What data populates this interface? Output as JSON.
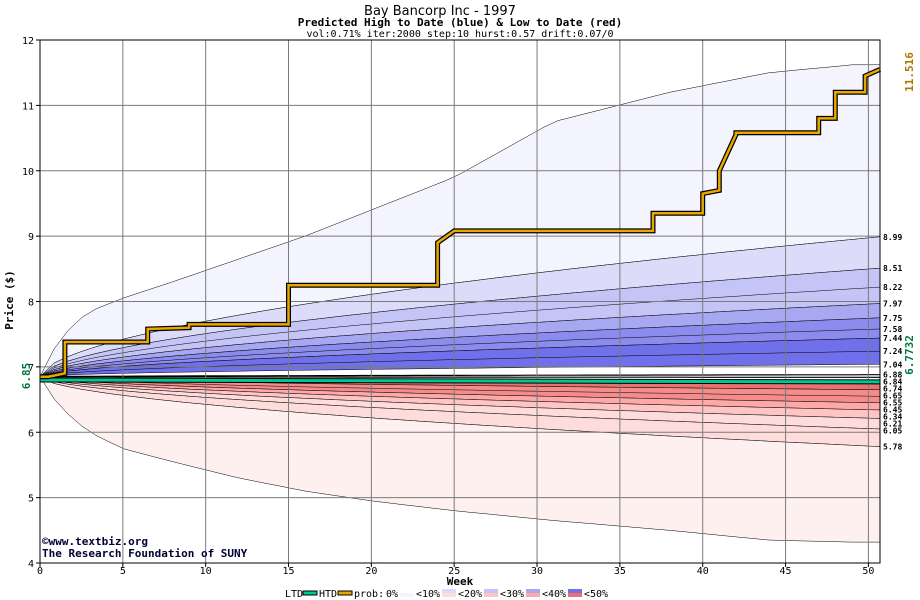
{
  "header": {
    "title": "Bay Bancorp Inc - 1997",
    "subtitle": "Predicted High to Date (blue) &  Low to Date (red)",
    "params": "vol:0.71% iter:2000 step:10 hurst:0.57 drift:0.07/0"
  },
  "credits": {
    "site": "www.textbiz.org",
    "org": "The Research Foundation of SUNY",
    "symbol": "©"
  },
  "legend": {
    "ltd": "LTD",
    "htd": "HTD",
    "prob": "prob:",
    "buckets": [
      "0%",
      "<10%",
      "<20%",
      "<30%",
      "<40%",
      "<50%"
    ]
  },
  "colors": {
    "ltd": "#00c890",
    "htd": "#e8a800",
    "blue_bands": [
      "#f4f4ff",
      "#dcdcfa",
      "#c4c4f6",
      "#a8a8f2",
      "#8c8cee",
      "#7070ea"
    ],
    "red_bands": [
      "#fff0f0",
      "#ffdcdc",
      "#ffc4c4",
      "#ffa8a8",
      "#f48c8c",
      "#ec7070"
    ],
    "start_label": "#007a40",
    "end_high_label": "#b07800",
    "end_low_label": "#007a40"
  },
  "chart_data": {
    "type": "area",
    "xlabel": "Week",
    "ylabel": "Price ($)",
    "xlim": [
      0,
      50.7
    ],
    "ylim": [
      4,
      12
    ],
    "xticks": [
      0,
      5,
      10,
      15,
      20,
      25,
      30,
      35,
      40,
      45,
      50
    ],
    "yticks": [
      4,
      5,
      6,
      7,
      8,
      9,
      10,
      11,
      12
    ],
    "grid": true,
    "start_value": "6.85",
    "end_high_value": "11.516",
    "end_low_value": "6.7732",
    "right_labels": [
      "8.99",
      "8.51",
      "8.22",
      "7.97",
      "7.75",
      "7.58",
      "7.44",
      "7.24",
      "7.04",
      "6.88",
      "6.84",
      "6.74",
      "6.65",
      "6.55",
      "6.45",
      "6.34",
      "6.21",
      "6.05",
      "5.78"
    ],
    "envelope": {
      "x": [
        0,
        1,
        2,
        3,
        5,
        8,
        12,
        16,
        20,
        25,
        31,
        38,
        44,
        49,
        50.7
      ],
      "upper": [
        6.85,
        7.35,
        7.65,
        7.85,
        8.05,
        8.3,
        8.65,
        9.0,
        9.4,
        9.9,
        10.75,
        11.2,
        11.5,
        11.62,
        11.62
      ],
      "lower": [
        6.85,
        6.45,
        6.2,
        6.0,
        5.75,
        5.55,
        5.3,
        5.1,
        4.95,
        4.8,
        4.65,
        4.5,
        4.35,
        4.32,
        4.32
      ]
    },
    "htd_series": {
      "x": [
        0,
        0.5,
        1.5,
        1.5,
        6.5,
        6.5,
        9,
        9,
        15,
        15,
        24,
        24,
        25,
        25,
        37,
        37,
        40,
        40,
        41,
        41,
        42,
        42,
        47,
        47,
        48,
        48,
        49.8,
        49.8,
        50.7
      ],
      "y": [
        6.85,
        6.85,
        6.9,
        7.38,
        7.38,
        7.58,
        7.6,
        7.65,
        7.65,
        8.25,
        8.25,
        8.9,
        9.08,
        9.08,
        9.08,
        9.35,
        9.35,
        9.65,
        9.7,
        10.0,
        10.55,
        10.58,
        10.58,
        10.8,
        10.8,
        11.2,
        11.2,
        11.45,
        11.55
      ]
    },
    "ltd_series": {
      "x": [
        0,
        50.7
      ],
      "y": [
        6.8,
        6.77
      ]
    }
  }
}
